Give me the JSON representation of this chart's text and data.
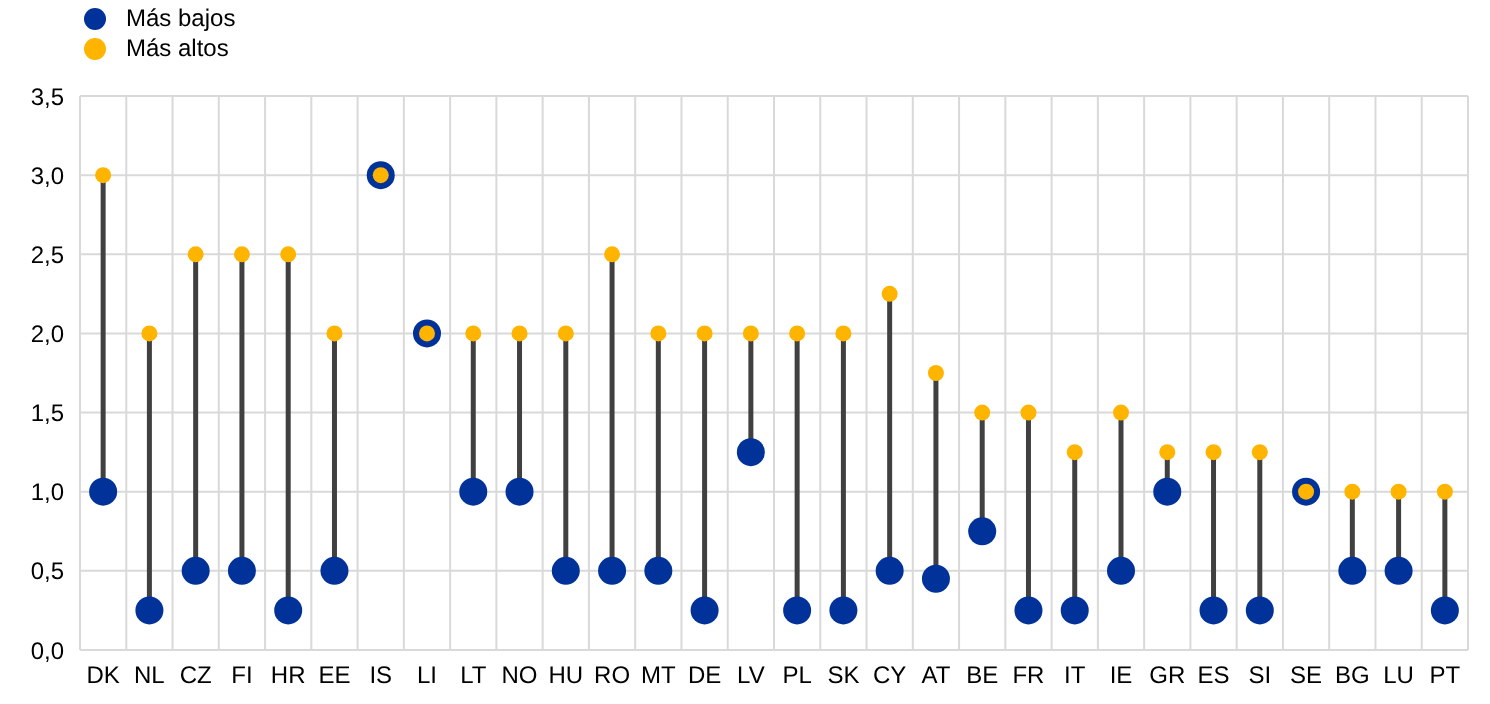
{
  "chart_data": {
    "type": "scatter",
    "categories": [
      "DK",
      "NL",
      "CZ",
      "FI",
      "HR",
      "EE",
      "IS",
      "LI",
      "LT",
      "NO",
      "HU",
      "RO",
      "MT",
      "DE",
      "LV",
      "PL",
      "SK",
      "CY",
      "AT",
      "BE",
      "FR",
      "IT",
      "IE",
      "GR",
      "ES",
      "SI",
      "SE",
      "BG",
      "LU",
      "PT"
    ],
    "series": [
      {
        "name": "Más bajos",
        "color": "#003299",
        "values": [
          1.0,
          0.25,
          0.5,
          0.5,
          0.25,
          0.5,
          3.0,
          2.0,
          1.0,
          1.0,
          0.5,
          0.5,
          0.5,
          0.25,
          1.25,
          0.25,
          0.25,
          0.5,
          0.45,
          0.75,
          0.25,
          0.25,
          0.5,
          1.0,
          0.25,
          0.25,
          1.0,
          0.5,
          0.5,
          0.25
        ]
      },
      {
        "name": "Más altos",
        "color": "#ffb400",
        "values": [
          3.0,
          2.0,
          2.5,
          2.5,
          2.5,
          2.0,
          3.0,
          2.0,
          2.0,
          2.0,
          2.0,
          2.5,
          2.0,
          2.0,
          2.0,
          2.0,
          2.0,
          2.25,
          1.75,
          1.5,
          1.5,
          1.25,
          1.5,
          1.25,
          1.25,
          1.25,
          1.0,
          1.0,
          1.0,
          1.0
        ]
      }
    ],
    "ylim": [
      0,
      3.5
    ],
    "yticks": [
      {
        "value": 0,
        "label": "0,0"
      },
      {
        "value": 0.5,
        "label": "0,5"
      },
      {
        "value": 1,
        "label": "1,0"
      },
      {
        "value": 1.5,
        "label": "1,5"
      },
      {
        "value": 2,
        "label": "2,0"
      },
      {
        "value": 2.5,
        "label": "2,5"
      },
      {
        "value": 3,
        "label": "3,0"
      },
      {
        "value": 3.5,
        "label": "3,5"
      }
    ],
    "grid": true,
    "legend": "top left",
    "marker": "circle"
  }
}
